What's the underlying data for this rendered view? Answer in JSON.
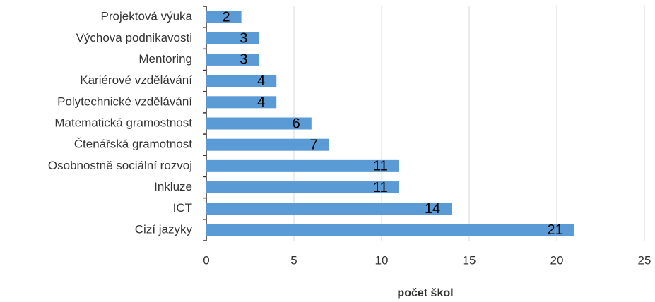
{
  "chart_data": {
    "type": "bar",
    "orientation": "horizontal",
    "x_label": "počet škol",
    "categories": [
      "Projektová výuka",
      "Výchova podnikavosti",
      "Mentoring",
      "Kariérové vzdělávání",
      "Polytechnické vzdělávání",
      "Matematická gramostnost",
      "Čtenářská gramotnost",
      "Osobnostně sociální rozvoj",
      "Inkluze",
      "ICT",
      "Cizí jazyky"
    ],
    "values": [
      2,
      3,
      3,
      4,
      4,
      6,
      7,
      11,
      11,
      14,
      21
    ],
    "color": "#5b9bd5",
    "xlim": [
      0,
      25
    ],
    "xticks": [
      0,
      5,
      10,
      15,
      20,
      25
    ],
    "grid": true
  }
}
